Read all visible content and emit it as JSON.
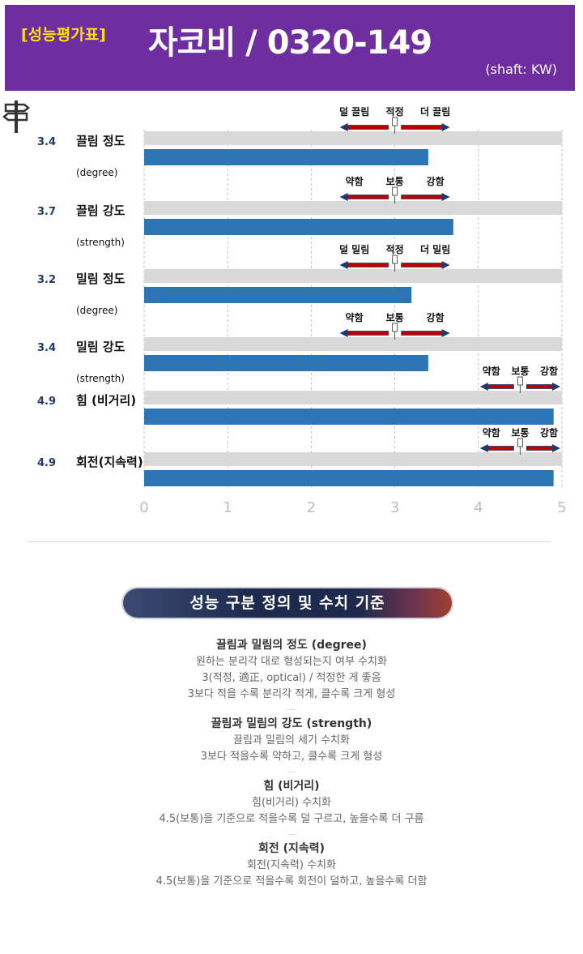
{
  "header": {
    "badge": "[성능평가표]",
    "title": "자코비 / 0320-149",
    "subtitle": "(shaft: KW)",
    "background_color": "#6e2ea0",
    "badge_color": "#ffe000"
  },
  "chart_data": {
    "type": "bar",
    "orientation": "horizontal",
    "xlim": [
      0,
      5
    ],
    "x_ticks": [
      "0",
      "1",
      "2",
      "3",
      "4",
      "5"
    ],
    "bar_color": "#2e75b6",
    "track_color": "#d9d9d9",
    "grid": "vertical dashed",
    "categories": [
      {
        "name": "끌림 정도",
        "sub": "(degree)",
        "value": 3.4,
        "value_label": "3.4",
        "scale_labels": [
          "덜 끌림",
          "적정",
          "더 끌림"
        ],
        "scale_center": 3
      },
      {
        "name": "끌림 강도",
        "sub": "(strength)",
        "value": 3.7,
        "value_label": "3.7",
        "scale_labels": [
          "약함",
          "보통",
          "강함"
        ],
        "scale_center": 3
      },
      {
        "name": "밀림 정도",
        "sub": "(degree)",
        "value": 3.2,
        "value_label": "3.2",
        "scale_labels": [
          "덜 밀림",
          "적정",
          "더 밀림"
        ],
        "scale_center": 3
      },
      {
        "name": "밀림 강도",
        "sub": "(strength)",
        "value": 3.4,
        "value_label": "3.4",
        "scale_labels": [
          "약함",
          "보통",
          "강함"
        ],
        "scale_center": 3
      },
      {
        "name": "힘 (비거리)",
        "sub": "",
        "value": 4.9,
        "value_label": "4.9",
        "scale_labels": [
          "약함",
          "보통",
          "강함"
        ],
        "scale_center": 4.5
      },
      {
        "name": "회전(지속력)",
        "sub": "",
        "value": 4.9,
        "value_label": "4.9",
        "scale_labels": [
          "약함",
          "보통",
          "강함"
        ],
        "scale_center": 4.5
      }
    ]
  },
  "definitions": {
    "banner": "성능 구분 정의 및 수치 기준",
    "sections": [
      {
        "title": "끌림과 밀림의 정도 (degree)",
        "lines": [
          "원하는 분리각 대로 형성되는지 여부 수치화",
          "3(적정, 適正, optical) / 적정한 게 좋음",
          "3보다 적을 수록 분리각 적게, 클수록 크게 형성"
        ]
      },
      {
        "title": "끌림과 밀림의 강도 (strength)",
        "lines": [
          "끌림과 밀림의 세기 수치화",
          "3보다 적을수록 약하고, 클수록 크게 형성"
        ]
      },
      {
        "title": "힘 (비거리)",
        "lines": [
          "힘(비거리) 수치화",
          "4.5(보통)을 기준으로 적을수록 덜 구르고, 높을수록 더 구름"
        ]
      },
      {
        "title": "회전 (지속력)",
        "lines": [
          "회전(지속력) 수치화",
          "4.5(보통)을 기준으로 적을수록 회전이 덜하고, 높을수록 더함"
        ]
      }
    ]
  }
}
